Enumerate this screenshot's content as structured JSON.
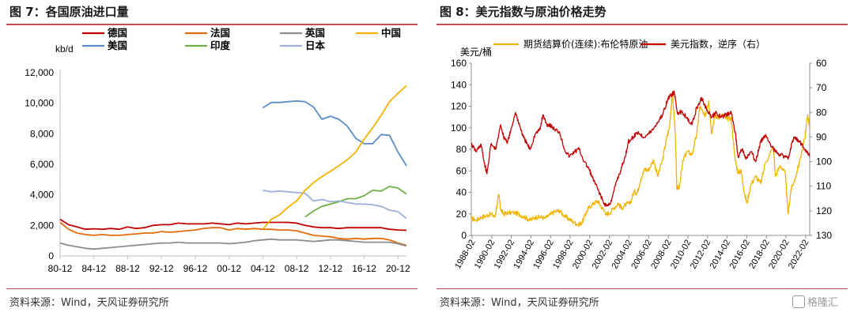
{
  "figures": [
    {
      "title": "图 7：各国原油进口量",
      "source": "资料来源：Wind，天风证券研究所"
    },
    {
      "title": "图 8：美元指数与原油价格走势",
      "source": "资料来源：Wind，天风证券研究所"
    }
  ],
  "watermark": {
    "text": "格隆汇",
    "icon": "gelonghui-logo-icon"
  },
  "chart_data": [
    {
      "type": "line",
      "ylabel": "kb/d",
      "ylim": [
        0,
        12000
      ],
      "y_ticks": [
        "0",
        "2,000",
        "4,000",
        "6,000",
        "8,000",
        "10,000",
        "12,000"
      ],
      "x_ticks": [
        "80-12",
        "84-12",
        "88-12",
        "92-12",
        "96-12",
        "00-12",
        "04-12",
        "08-12",
        "12-12",
        "16-12",
        "20-12"
      ],
      "x_range": [
        1980,
        2021
      ],
      "legend_position": "top",
      "series": [
        {
          "name": "德国",
          "color": "#c00000",
          "x": [
            1980,
            1981,
            1982,
            1983,
            1984,
            1985,
            1986,
            1987,
            1988,
            1989,
            1990,
            1991,
            1992,
            1993,
            1994,
            1995,
            1996,
            1997,
            1998,
            1999,
            2000,
            2001,
            2002,
            2003,
            2004,
            2005,
            2006,
            2007,
            2008,
            2009,
            2010,
            2011,
            2012,
            2013,
            2014,
            2015,
            2016,
            2017,
            2018,
            2019,
            2020,
            2021
          ],
          "values": [
            2400,
            2050,
            1900,
            1750,
            1780,
            1750,
            1800,
            1750,
            1900,
            1800,
            1850,
            2000,
            2050,
            2050,
            2150,
            2100,
            2100,
            2100,
            2150,
            2100,
            2050,
            2150,
            2100,
            2150,
            2200,
            2200,
            2200,
            2200,
            2150,
            2000,
            1900,
            1850,
            1850,
            1800,
            1850,
            1850,
            1850,
            1850,
            1850,
            1750,
            1700,
            1680
          ]
        },
        {
          "name": "美国",
          "color": "#5b8ec4",
          "x": [
            2004,
            2005,
            2006,
            2007,
            2008,
            2009,
            2010,
            2011,
            2012,
            2013,
            2014,
            2015,
            2016,
            2017,
            2018,
            2019,
            2020,
            2021
          ],
          "values": [
            9700,
            10050,
            10050,
            10100,
            10150,
            10100,
            9750,
            8950,
            9150,
            8950,
            8500,
            7700,
            7350,
            7350,
            7950,
            7900,
            6800,
            5900
          ]
        },
        {
          "name": "法国",
          "color": "#e46c0a",
          "x": [
            1980,
            1981,
            1982,
            1983,
            1984,
            1985,
            1986,
            1987,
            1988,
            1989,
            1990,
            1991,
            1992,
            1993,
            1994,
            1995,
            1996,
            1997,
            1998,
            1999,
            2000,
            2001,
            2002,
            2003,
            2004,
            2005,
            2006,
            2007,
            2008,
            2009,
            2010,
            2011,
            2012,
            2013,
            2014,
            2015,
            2016,
            2017,
            2018,
            2019,
            2020,
            2021
          ],
          "values": [
            2200,
            1750,
            1500,
            1400,
            1350,
            1400,
            1350,
            1350,
            1400,
            1450,
            1500,
            1500,
            1600,
            1550,
            1600,
            1650,
            1700,
            1800,
            1850,
            1850,
            1700,
            1800,
            1750,
            1800,
            1750,
            1750,
            1700,
            1700,
            1650,
            1500,
            1350,
            1300,
            1250,
            1150,
            1100,
            1150,
            1100,
            1150,
            1150,
            1050,
            850,
            700
          ]
        },
        {
          "name": "印度",
          "color": "#70ad47",
          "x": [
            2009,
            2010,
            2011,
            2012,
            2013,
            2014,
            2015,
            2016,
            2017,
            2018,
            2019,
            2020,
            2021
          ],
          "values": [
            2550,
            2950,
            3250,
            3400,
            3550,
            3750,
            3750,
            3950,
            4300,
            4250,
            4550,
            4450,
            4050
          ]
        },
        {
          "name": "英国",
          "color": "#8c8c8c",
          "x": [
            1980,
            1981,
            1982,
            1983,
            1984,
            1985,
            1986,
            1987,
            1988,
            1989,
            1990,
            1991,
            1992,
            1993,
            1994,
            1995,
            1996,
            1997,
            1998,
            1999,
            2000,
            2001,
            2002,
            2003,
            2004,
            2005,
            2006,
            2007,
            2008,
            2009,
            2010,
            2011,
            2012,
            2013,
            2014,
            2015,
            2016,
            2017,
            2018,
            2019,
            2020,
            2021
          ],
          "values": [
            850,
            700,
            600,
            500,
            450,
            500,
            550,
            600,
            650,
            700,
            750,
            800,
            850,
            850,
            900,
            850,
            850,
            850,
            850,
            850,
            800,
            850,
            900,
            1000,
            1050,
            1100,
            1050,
            1050,
            1050,
            1000,
            950,
            1000,
            1050,
            1050,
            1000,
            950,
            900,
            900,
            900,
            900,
            800,
            650
          ]
        },
        {
          "name": "日本",
          "color": "#9dafdc",
          "x": [
            2004,
            2005,
            2006,
            2007,
            2008,
            2009,
            2010,
            2011,
            2012,
            2013,
            2014,
            2015,
            2016,
            2017,
            2018,
            2019,
            2020,
            2021
          ],
          "values": [
            4300,
            4200,
            4250,
            4200,
            4150,
            4100,
            3600,
            3700,
            3550,
            3600,
            3500,
            3400,
            3400,
            3350,
            3250,
            3000,
            2900,
            2450
          ]
        },
        {
          "name": "中国",
          "color": "#f0b400",
          "x": [
            2004,
            2005,
            2006,
            2007,
            2008,
            2009,
            2010,
            2011,
            2012,
            2013,
            2014,
            2015,
            2016,
            2017,
            2018,
            2019,
            2020,
            2021
          ],
          "values": [
            1750,
            2400,
            2700,
            3200,
            3600,
            4300,
            4800,
            5200,
            5550,
            5900,
            6300,
            6800,
            7650,
            8400,
            9200,
            10100,
            10650,
            11150
          ]
        }
      ]
    },
    {
      "type": "line",
      "ylabel": "美元/桶",
      "ylim": [
        0,
        160
      ],
      "y_ticks": [
        "0",
        "20",
        "40",
        "60",
        "80",
        "100",
        "120",
        "140",
        "160"
      ],
      "y2lim": [
        60,
        130
      ],
      "y2_inverted": true,
      "y2_ticks": [
        "60",
        "70",
        "80",
        "90",
        "100",
        "110",
        "120",
        "130"
      ],
      "x_ticks": [
        "1988-02",
        "1990-02",
        "1992-02",
        "1994-02",
        "1996-02",
        "1998-02",
        "2000-02",
        "2002-02",
        "2004-02",
        "2006-02",
        "2008-02",
        "2010-02",
        "2012-02",
        "2014-02",
        "2016-02",
        "2018-02",
        "2020-02",
        "2022-02"
      ],
      "x_range": [
        1988.0,
        2022.5
      ],
      "legend_position": "top",
      "series": [
        {
          "name": "期货结算价(连续):布伦特原油",
          "color": "#f0b400",
          "axis": "left",
          "x": [
            1988.0,
            1988.5,
            1989.0,
            1989.5,
            1990.0,
            1990.4,
            1990.8,
            1991.0,
            1991.3,
            1991.8,
            1992.5,
            1993.0,
            1993.5,
            1994.0,
            1994.5,
            1995.0,
            1995.5,
            1996.0,
            1996.5,
            1997.0,
            1997.5,
            1998.0,
            1998.5,
            1998.95,
            1999.3,
            1999.7,
            2000.0,
            2000.5,
            2000.9,
            2001.3,
            2001.8,
            2002.0,
            2002.5,
            2003.0,
            2003.3,
            2003.8,
            2004.2,
            2004.6,
            2004.9,
            2005.3,
            2005.7,
            2006.0,
            2006.6,
            2007.0,
            2007.5,
            2007.9,
            2008.2,
            2008.5,
            2008.8,
            2008.95,
            2009.2,
            2009.6,
            2010.0,
            2010.5,
            2011.0,
            2011.3,
            2011.8,
            2012.2,
            2012.5,
            2012.8,
            2013.2,
            2013.7,
            2014.0,
            2014.5,
            2014.9,
            2015.2,
            2015.5,
            2015.9,
            2016.1,
            2016.5,
            2017.0,
            2017.5,
            2018.0,
            2018.8,
            2019.0,
            2019.5,
            2020.0,
            2020.3,
            2020.6,
            2021.0,
            2021.5,
            2022.0,
            2022.3,
            2022.5
          ],
          "values": [
            16,
            14,
            17,
            18,
            20,
            17,
            38,
            24,
            20,
            21,
            21,
            19,
            17,
            14,
            17,
            17,
            16,
            19,
            22,
            23,
            18,
            15,
            12,
            10,
            12,
            21,
            26,
            30,
            32,
            26,
            20,
            20,
            25,
            30,
            25,
            29,
            30,
            41,
            39,
            53,
            62,
            60,
            70,
            55,
            70,
            90,
            100,
            133,
            95,
            44,
            45,
            70,
            78,
            75,
            95,
            120,
            110,
            125,
            95,
            110,
            110,
            112,
            108,
            109,
            70,
            58,
            60,
            37,
            30,
            47,
            55,
            48,
            68,
            82,
            55,
            65,
            58,
            20,
            43,
            52,
            70,
            90,
            112,
            100
          ]
        },
        {
          "name": "美元指数，逆序（右）",
          "color": "#c00000",
          "axis": "right",
          "x": [
            1988.0,
            1988.5,
            1989.0,
            1989.3,
            1989.6,
            1990.0,
            1990.5,
            1991.0,
            1991.3,
            1991.7,
            1992.0,
            1992.5,
            1992.9,
            1993.3,
            1993.7,
            1994.0,
            1994.5,
            1995.0,
            1995.3,
            1995.7,
            1996.0,
            1996.5,
            1997.0,
            1997.5,
            1998.0,
            1998.5,
            1999.0,
            1999.5,
            2000.0,
            2000.5,
            2001.0,
            2001.5,
            2001.9,
            2002.3,
            2002.8,
            2003.2,
            2003.7,
            2004.0,
            2004.5,
            2005.0,
            2005.5,
            2006.0,
            2006.5,
            2007.0,
            2007.5,
            2008.0,
            2008.3,
            2008.7,
            2009.0,
            2009.5,
            2010.0,
            2010.5,
            2011.0,
            2011.5,
            2012.0,
            2012.5,
            2013.0,
            2013.5,
            2014.0,
            2014.5,
            2014.9,
            2015.2,
            2015.6,
            2016.0,
            2016.5,
            2017.0,
            2017.5,
            2018.0,
            2018.5,
            2019.0,
            2019.5,
            2020.0,
            2020.3,
            2020.7,
            2021.0,
            2021.5,
            2022.0,
            2022.5
          ],
          "values": [
            93,
            96,
            93,
            100,
            105,
            93,
            95,
            85,
            90,
            92,
            88,
            80,
            85,
            90,
            93,
            95,
            89,
            87,
            81,
            85,
            85,
            87,
            88,
            95,
            98,
            96,
            95,
            100,
            103,
            108,
            112,
            117,
            118,
            116,
            108,
            104,
            98,
            92,
            90,
            88,
            90,
            89,
            87,
            84,
            81,
            75,
            73,
            72,
            80,
            80,
            82,
            85,
            78,
            74,
            79,
            82,
            80,
            82,
            81,
            80,
            88,
            98,
            95,
            99,
            96,
            100,
            92,
            89,
            93,
            96,
            97,
            98,
            99,
            92,
            90,
            92,
            95,
            98
          ]
        }
      ]
    }
  ]
}
